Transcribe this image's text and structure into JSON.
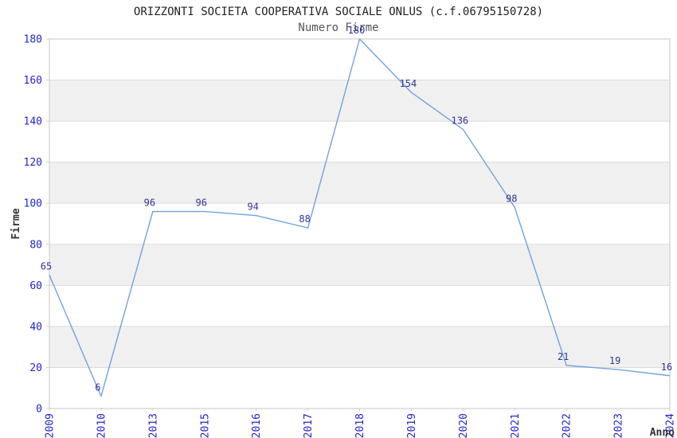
{
  "chart_data": {
    "type": "line",
    "title": "ORIZZONTI SOCIETA COOPERATIVA SOCIALE ONLUS (c.f.06795150728)",
    "subtitle": "Numero Firme",
    "xlabel": "Anno",
    "ylabel": "Firme",
    "categories": [
      "2009",
      "2010",
      "2013",
      "2015",
      "2016",
      "2017",
      "2018",
      "2019",
      "2020",
      "2021",
      "2022",
      "2023",
      "2024"
    ],
    "values": [
      65,
      6,
      96,
      96,
      94,
      88,
      180,
      154,
      136,
      98,
      21,
      19,
      16
    ],
    "ylim": [
      0,
      180
    ],
    "ytick_step": 20,
    "grid": true,
    "legend": "none",
    "colors": {
      "line": "#6FA3E0",
      "tick_label": "#2424CC",
      "data_label": "#333399",
      "band": "#F0F0F0",
      "gridline": "#DCDCDC",
      "frame": "#D0D0D0",
      "title": "#222222",
      "subtitle": "#555555",
      "axis_label": "#333333"
    }
  }
}
